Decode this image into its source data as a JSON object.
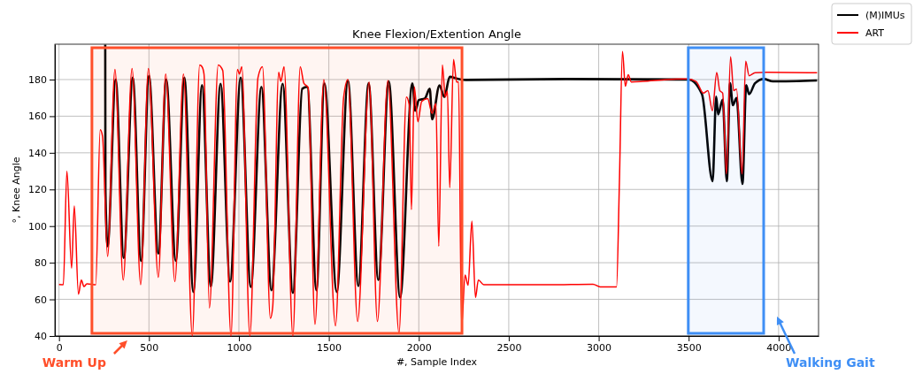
{
  "chart_data": {
    "type": "line",
    "title": "Knee Flexion/Extention Angle",
    "xlabel": "#, Sample Index",
    "ylabel": "°, Knee Angle",
    "xlim": [
      -23,
      4222
    ],
    "ylim": [
      40,
      199.3
    ],
    "xticks": [
      0,
      500,
      1000,
      1500,
      2000,
      2500,
      3000,
      3500,
      4000
    ],
    "yticks": [
      40,
      60,
      80,
      100,
      120,
      140,
      160,
      180
    ],
    "grid": true,
    "legend": "top right",
    "line_style": "solid",
    "bands": [
      {
        "axis": "x",
        "from": 183,
        "to": 2240,
        "label": "Warm Up",
        "color": "#ff4f2a"
      },
      {
        "axis": "x",
        "from": 3498,
        "to": 3917,
        "label": "Walking Gait",
        "color": "#3f8ff5"
      }
    ],
    "series": [
      {
        "name": "(M)IMUs",
        "color": "#000000",
        "x": [
          257,
          258,
          270,
          315,
          360,
          410,
          456,
          500,
          552,
          596,
          649,
          697,
          747,
          795,
          844,
          898,
          951,
          1010,
          1066,
          1125,
          1181,
          1243,
          1300,
          1352,
          1380,
          1431,
          1475,
          1544,
          1606,
          1664,
          1721,
          1775,
          1833,
          1896,
          1964,
          1980,
          2000,
          2033,
          2061,
          2074,
          2115,
          2142,
          2172,
          2213,
          2262,
          2820,
          3500,
          3574,
          3633,
          3653,
          3664,
          3689,
          3712,
          3730,
          3746,
          3766,
          3799,
          3820,
          3836,
          3869,
          3918,
          3968,
          4214
        ],
        "values": [
          199,
          120,
          89,
          180,
          82.6,
          181,
          81,
          182,
          85,
          180,
          81,
          181,
          64,
          177,
          67,
          177.7,
          69.7,
          181,
          66.7,
          176,
          65,
          177.7,
          63.5,
          175,
          176,
          65,
          177.9,
          64.1,
          179.5,
          67.3,
          178,
          70.5,
          179,
          61,
          177.9,
          163,
          168.8,
          169.6,
          175,
          158.3,
          176.8,
          170.5,
          181.5,
          180.5,
          179.8,
          180.3,
          180,
          172,
          124.5,
          170.7,
          161,
          169,
          124.5,
          178,
          166,
          170,
          123,
          177,
          172,
          178,
          180.3,
          179,
          179.5
        ]
      },
      {
        "name": "ART",
        "color": "#ff0000",
        "x": [
          0,
          24,
          44,
          70,
          85,
          108,
          124,
          139,
          155,
          204,
          229,
          242,
          270,
          311,
          357,
          406,
          454,
          497,
          552,
          593,
          644,
          692,
          741,
          782,
          795,
          806,
          836,
          885,
          910,
          956,
          992,
          1003,
          1016,
          1061,
          1106,
          1131,
          1175,
          1188,
          1221,
          1233,
          1251,
          1300,
          1341,
          1361,
          1385,
          1423,
          1472,
          1537,
          1582,
          1606,
          1660,
          1724,
          1770,
          1828,
          1890,
          1931,
          1947,
          1959,
          1975,
          1995,
          2016,
          2049,
          2074,
          2095,
          2111,
          2131,
          2147,
          2159,
          2172,
          2193,
          2210,
          2221,
          2238,
          2257,
          2274,
          2295,
          2315,
          2331,
          2361,
          2500,
          2722,
          2968,
          3008,
          3099,
          3115,
          3132,
          3148,
          3164,
          3181,
          3246,
          3377,
          3492,
          3541,
          3582,
          3607,
          3632,
          3656,
          3673,
          3689,
          3710,
          3733,
          3750,
          3766,
          3797,
          3817,
          3836,
          3869,
          3935,
          4214
        ],
        "values": [
          68.1,
          68,
          130,
          77,
          111,
          62.8,
          70.5,
          67,
          68.5,
          68,
          152.6,
          149,
          83.4,
          185.6,
          70.5,
          186,
          68,
          186,
          72,
          183,
          69.7,
          183,
          40,
          188,
          187,
          183,
          55.3,
          188,
          185,
          40,
          185.6,
          183,
          187,
          40,
          181,
          187,
          49.6,
          56,
          184,
          179,
          187,
          40,
          187,
          178,
          175.7,
          46.4,
          180,
          45.6,
          170,
          180,
          48,
          178.7,
          48,
          179.5,
          41.6,
          170.5,
          166,
          109,
          176,
          157,
          168,
          169.6,
          161.6,
          167,
          89,
          188,
          170.5,
          173.7,
          121,
          191,
          178.7,
          178.7,
          45,
          73.3,
          67.7,
          102.7,
          61,
          70.5,
          68,
          68,
          68,
          68.3,
          66.8,
          66.8,
          123.6,
          195.3,
          176.4,
          182.6,
          178.7,
          179,
          180,
          180.3,
          179,
          172.6,
          174,
          163,
          183.9,
          174,
          172.6,
          128.5,
          192.4,
          174,
          174.8,
          128.5,
          190,
          182.1,
          183.7,
          184,
          183.7
        ]
      }
    ]
  }
}
